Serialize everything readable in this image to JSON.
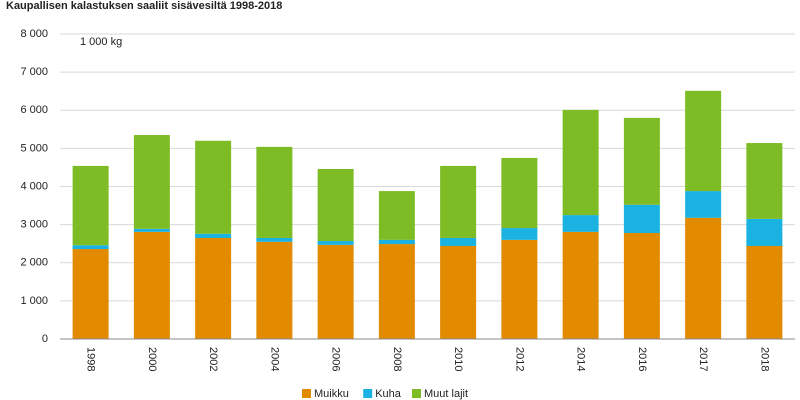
{
  "chart_data": {
    "type": "stacked_bar",
    "title": "Kaupallisen kalastuksen saaliit sisävesiltä 1998-2018",
    "y_unit_label": "1 000 kg",
    "categories": [
      "1998",
      "2000",
      "2002",
      "2004",
      "2006",
      "2008",
      "2010",
      "2012",
      "2014",
      "2016",
      "2017",
      "2018"
    ],
    "series": [
      {
        "name": "Muikku",
        "color": "#e28a00",
        "values": [
          2360,
          2810,
          2650,
          2550,
          2470,
          2490,
          2440,
          2600,
          2810,
          2780,
          3180,
          2440
        ]
      },
      {
        "name": "Kuha",
        "color": "#1ab2e0",
        "values": [
          100,
          80,
          110,
          100,
          100,
          110,
          210,
          310,
          440,
          740,
          700,
          710
        ]
      },
      {
        "name": "Muut lajit",
        "color": "#7ebc26",
        "values": [
          2080,
          2460,
          2440,
          2390,
          1890,
          1280,
          1890,
          1840,
          2760,
          2280,
          2630,
          1990
        ]
      }
    ],
    "ylim": [
      0,
      8000
    ],
    "yticks": [
      0,
      {
        "value": 1000,
        "label": "1 000"
      },
      {
        "value": 2000,
        "label": "2 000"
      },
      {
        "value": 3000,
        "label": "3 000"
      },
      {
        "value": 4000,
        "label": "4 000"
      },
      {
        "value": 5000,
        "label": "5 000"
      },
      {
        "value": 6000,
        "label": "6 000"
      },
      {
        "value": 7000,
        "label": "7 000"
      },
      {
        "value": 8000,
        "label": "8 000"
      }
    ],
    "grid": true,
    "legend": "bottom"
  }
}
